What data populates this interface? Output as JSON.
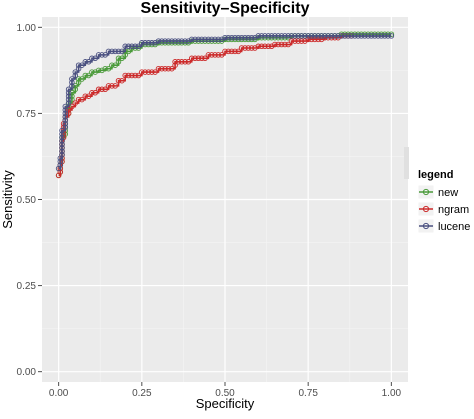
{
  "chart_data": {
    "type": "line",
    "title": "Sensitivity–Specificity",
    "xlabel": "Specificity",
    "ylabel": "Sensitivity",
    "xlim": [
      -0.05,
      1.05
    ],
    "ylim": [
      -0.03,
      1.03
    ],
    "x_ticks": [
      "0.00",
      "0.25",
      "0.50",
      "0.75",
      "1.00"
    ],
    "y_ticks": [
      "0.00",
      "0.25",
      "0.50",
      "0.75",
      "1.00"
    ],
    "grid": true,
    "legend": {
      "title": "legend",
      "position": "right"
    },
    "series": [
      {
        "name": "new",
        "color": "#4a9a3a",
        "x": [
          0.0,
          0.005,
          0.01,
          0.02,
          0.03,
          0.04,
          0.05,
          0.06,
          0.08,
          0.1,
          0.12,
          0.14,
          0.16,
          0.18,
          0.2,
          0.22,
          0.25,
          0.3,
          0.4,
          0.5,
          0.6,
          0.7,
          0.75,
          0.8,
          0.85,
          0.9,
          0.95,
          1.0
        ],
        "y": [
          0.57,
          0.6,
          0.68,
          0.74,
          0.78,
          0.81,
          0.83,
          0.85,
          0.86,
          0.87,
          0.875,
          0.88,
          0.89,
          0.91,
          0.93,
          0.94,
          0.95,
          0.955,
          0.96,
          0.965,
          0.97,
          0.975,
          0.975,
          0.975,
          0.98,
          0.98,
          0.98,
          0.98
        ]
      },
      {
        "name": "ngram",
        "color": "#cc2a2a",
        "x": [
          0.0,
          0.005,
          0.01,
          0.015,
          0.02,
          0.03,
          0.04,
          0.05,
          0.06,
          0.08,
          0.1,
          0.12,
          0.15,
          0.18,
          0.2,
          0.25,
          0.3,
          0.35,
          0.4,
          0.45,
          0.5,
          0.55,
          0.6,
          0.65,
          0.7,
          0.75,
          0.8,
          0.85,
          0.88
        ],
        "y": [
          0.57,
          0.6,
          0.67,
          0.72,
          0.74,
          0.76,
          0.77,
          0.78,
          0.79,
          0.8,
          0.81,
          0.82,
          0.83,
          0.845,
          0.86,
          0.87,
          0.88,
          0.9,
          0.91,
          0.92,
          0.93,
          0.94,
          0.945,
          0.95,
          0.96,
          0.965,
          0.97,
          0.975,
          0.975
        ]
      },
      {
        "name": "lucene",
        "color": "#4a5080",
        "x": [
          0.0,
          0.005,
          0.01,
          0.02,
          0.03,
          0.04,
          0.05,
          0.06,
          0.08,
          0.1,
          0.12,
          0.15,
          0.2,
          0.25,
          0.3,
          0.4,
          0.5,
          0.6,
          0.7,
          0.8,
          0.9,
          1.0
        ],
        "y": [
          0.59,
          0.62,
          0.7,
          0.77,
          0.82,
          0.85,
          0.87,
          0.89,
          0.9,
          0.91,
          0.92,
          0.93,
          0.945,
          0.955,
          0.96,
          0.965,
          0.97,
          0.975,
          0.975,
          0.975,
          0.975,
          0.975
        ]
      }
    ]
  }
}
